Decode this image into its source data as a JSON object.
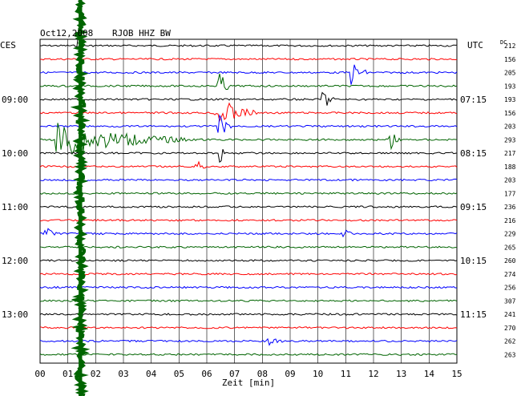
{
  "header": {
    "date": "Oct12,2008",
    "station": "RJOB HHZ BW",
    "left_zone": "CES",
    "right_zone": "UTC",
    "dc_label": "DC"
  },
  "chart_data": {
    "type": "line",
    "title": "Oct12,2008 RJOB HHZ BW",
    "xlabel": "Zeit [min]",
    "xlim": [
      0,
      15
    ],
    "x_ticks": [
      "00",
      "01",
      "02",
      "03",
      "04",
      "05",
      "06",
      "07",
      "08",
      "09",
      "10",
      "11",
      "12",
      "13",
      "14",
      "15"
    ],
    "left_time_labels": [
      {
        "row": 4,
        "label": "09:00"
      },
      {
        "row": 8,
        "label": "10:00"
      },
      {
        "row": 12,
        "label": "11:00"
      },
      {
        "row": 16,
        "label": "12:00"
      },
      {
        "row": 20,
        "label": "13:00"
      }
    ],
    "right_time_labels": [
      {
        "row": 4,
        "label": "07:15"
      },
      {
        "row": 8,
        "label": "08:15"
      },
      {
        "row": 12,
        "label": "09:15"
      },
      {
        "row": 16,
        "label": "10:15"
      },
      {
        "row": 20,
        "label": "11:15"
      }
    ],
    "trace_colors": [
      "#000000",
      "#ff0000",
      "#0000ff",
      "#006400"
    ],
    "dc_values": [
      "212",
      "156",
      "205",
      "193",
      "193",
      "156",
      "203",
      "293",
      "217",
      "188",
      "203",
      "177",
      "236",
      "216",
      "229",
      "265",
      "260",
      "274",
      "256",
      "307",
      "241",
      "270",
      "262",
      "263"
    ],
    "events": [
      {
        "row": 0,
        "minute": 1.4,
        "amplitude": 1.0,
        "duration": 0.1
      },
      {
        "row": 2,
        "minute": 11.2,
        "amplitude": 0.7,
        "duration": 0.6
      },
      {
        "row": 3,
        "minute": 6.4,
        "amplitude": 1.0,
        "duration": 0.4
      },
      {
        "row": 4,
        "minute": 10.1,
        "amplitude": 0.9,
        "duration": 0.5
      },
      {
        "row": 5,
        "minute": 6.3,
        "amplitude": 1.0,
        "duration": 1.5
      },
      {
        "row": 6,
        "minute": 6.4,
        "amplitude": 0.8,
        "duration": 0.5
      },
      {
        "row": 7,
        "minute": 0.6,
        "amplitude": 1.0,
        "duration": 4.8
      },
      {
        "row": 7,
        "minute": 12.6,
        "amplitude": 0.6,
        "duration": 0.4
      },
      {
        "row": 8,
        "minute": 6.4,
        "amplitude": 1.0,
        "duration": 0.2
      },
      {
        "row": 9,
        "minute": 5.6,
        "amplitude": 0.4,
        "duration": 0.4
      },
      {
        "row": 14,
        "minute": 0.2,
        "amplitude": 0.4,
        "duration": 0.4
      },
      {
        "row": 14,
        "minute": 10.9,
        "amplitude": 0.4,
        "duration": 0.3
      },
      {
        "row": 22,
        "minute": 8.2,
        "amplitude": 0.3,
        "duration": 0.6
      }
    ],
    "green_wave": {
      "minute_start": 1.3,
      "minute_end": 1.6
    }
  }
}
